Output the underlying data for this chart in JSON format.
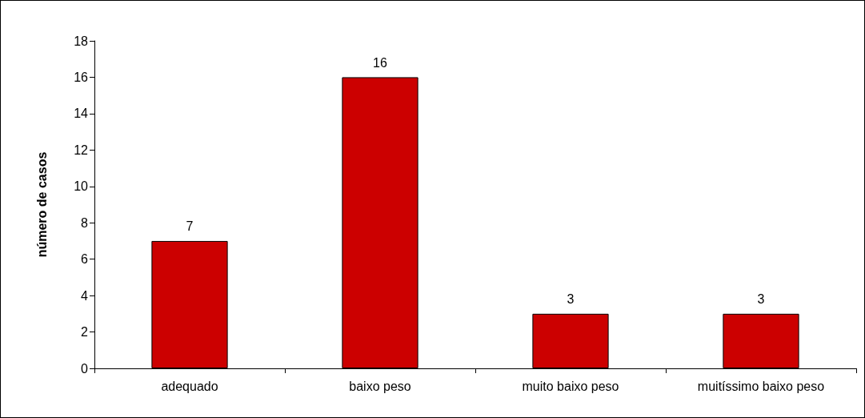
{
  "chart_data": {
    "type": "bar",
    "ylabel": "número de casos",
    "categories": [
      "adequado",
      "baixo peso",
      "muito baixo peso",
      "muitíssimo baixo peso"
    ],
    "values": [
      7,
      16,
      3,
      3
    ],
    "color": "#cc0000",
    "ylim": [
      0,
      18
    ],
    "yticks": [
      0,
      2,
      4,
      6,
      8,
      10,
      12,
      14,
      16,
      18
    ],
    "data_labels": true
  }
}
